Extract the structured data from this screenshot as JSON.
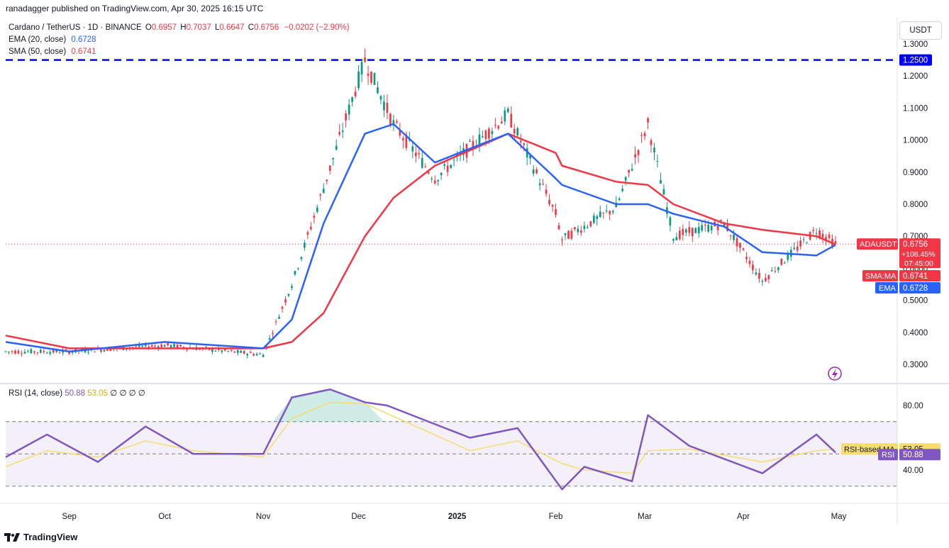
{
  "header": {
    "published": "ranadagger published on TradingView.com, Apr 30, 2025 16:15 UTC"
  },
  "legend": {
    "symbol": "Cardano / TetherUS · 1D · BINANCE",
    "open_label": "O",
    "open": "0.6957",
    "high_label": "H",
    "high": "0.7037",
    "low_label": "L",
    "low": "0.6647",
    "close_label": "C",
    "close": "0.6756",
    "change": "−0.0202 (−2.90%)",
    "ema_label": "EMA (20, close)",
    "ema_value": "0.6728",
    "sma_label": "SMA (50, close)",
    "sma_value": "0.6741"
  },
  "rsi_legend": {
    "label": "RSI (14, close)",
    "rsi": "50.88",
    "ma": "53.05",
    "extra": "∅ ∅ ∅ ∅"
  },
  "currency": "USDT",
  "price_axis": {
    "ticks": [
      "1.3000",
      "1.2000",
      "1.1000",
      "1.0000",
      "0.9000",
      "0.8000",
      "0.7000",
      "0.6000",
      "0.5000",
      "0.4000",
      "0.3000"
    ],
    "level_label": "1.2500",
    "price_tag": {
      "symbol": "ADAUSDT",
      "price": "0.6756",
      "pct": "+108.45%",
      "countdown": "07:45:00"
    },
    "sma_tag": {
      "label": "SMA:MA",
      "value": "0.6741"
    },
    "ema_tag": {
      "label": "EMA",
      "value": "0.6728"
    }
  },
  "rsi_axis": {
    "ticks": [
      "80.00",
      "40.00"
    ],
    "ma_tag": {
      "label": "RSI-based MA",
      "value": "53.05"
    },
    "rsi_tag": {
      "label": "RSI",
      "value": "50.88"
    }
  },
  "time_axis": [
    "Sep",
    "Oct",
    "Nov",
    "Dec",
    "2025",
    "Feb",
    "Mar",
    "Apr",
    "May"
  ],
  "footer": {
    "brand": "TradingView"
  },
  "colors": {
    "up": "#089981",
    "down": "#f23645",
    "ema": "#2962ff",
    "sma": "#f23645",
    "rsi": "#7e57c2",
    "rsi_ma": "#f7dc6f",
    "level": "#0000ff"
  },
  "chart_data": [
    {
      "type": "line",
      "title": "Cardano / TetherUS · 1D · BINANCE",
      "ylim": [
        0.25,
        1.35
      ],
      "x": [
        "2024-08-12",
        "2024-09-01",
        "2024-10-01",
        "2024-11-01",
        "2024-11-10",
        "2024-11-20",
        "2024-12-03",
        "2024-12-12",
        "2024-12-25",
        "2025-01-17",
        "2025-02-01",
        "2025-02-03",
        "2025-02-20",
        "2025-03-02",
        "2025-03-10",
        "2025-03-26",
        "2025-04-07",
        "2025-04-24",
        "2025-04-30"
      ],
      "series": [
        {
          "name": "ADAUSDT",
          "values": [
            0.34,
            0.34,
            0.36,
            0.33,
            0.55,
            0.85,
            1.25,
            1.05,
            0.88,
            1.08,
            0.77,
            0.69,
            0.79,
            1.05,
            0.7,
            0.74,
            0.56,
            0.72,
            0.6756
          ]
        },
        {
          "name": "EMA (20, close)",
          "values": [
            0.37,
            0.34,
            0.37,
            0.35,
            0.44,
            0.74,
            1.02,
            1.05,
            0.93,
            1.02,
            0.88,
            0.86,
            0.8,
            0.8,
            0.77,
            0.73,
            0.65,
            0.64,
            0.6728
          ]
        },
        {
          "name": "SMA (50, close)",
          "values": [
            0.39,
            0.35,
            0.35,
            0.35,
            0.37,
            0.46,
            0.7,
            0.82,
            0.92,
            1.02,
            0.96,
            0.92,
            0.87,
            0.86,
            0.8,
            0.74,
            0.72,
            0.7,
            0.6741
          ]
        }
      ],
      "levels": [
        1.25
      ]
    },
    {
      "type": "line",
      "title": "RSI (14, close)",
      "ylim": [
        20,
        100
      ],
      "x": [
        "2024-08-12",
        "2024-08-25",
        "2024-09-10",
        "2024-09-25",
        "2024-10-10",
        "2024-11-01",
        "2024-11-10",
        "2024-11-22",
        "2024-12-03",
        "2024-12-10",
        "2025-01-05",
        "2025-01-20",
        "2025-02-03",
        "2025-02-10",
        "2025-02-25",
        "2025-03-02",
        "2025-03-15",
        "2025-04-07",
        "2025-04-24",
        "2025-04-30"
      ],
      "series": [
        {
          "name": "RSI",
          "values": [
            48,
            62,
            45,
            67,
            50,
            50,
            85,
            90,
            82,
            80,
            60,
            66,
            28,
            42,
            33,
            74,
            55,
            38,
            62,
            50.88
          ]
        },
        {
          "name": "RSI-based MA",
          "values": [
            42,
            52,
            48,
            58,
            52,
            48,
            72,
            82,
            81,
            75,
            52,
            58,
            44,
            40,
            38,
            52,
            53,
            45,
            52,
            53.05
          ]
        }
      ],
      "levels": [
        70,
        50,
        30
      ]
    }
  ]
}
